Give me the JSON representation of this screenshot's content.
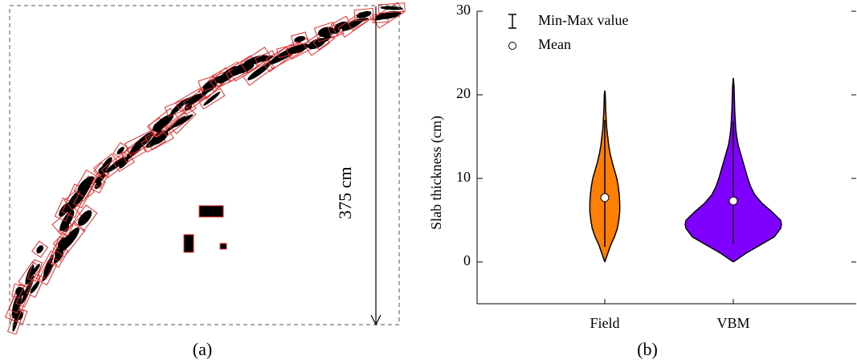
{
  "panel_a": {
    "caption": "(a)",
    "dimension_label": "375 cm"
  },
  "chart_data": {
    "type": "violin",
    "caption": "(b)",
    "y_label": "Slab thickness (cm)",
    "categories": [
      "Field",
      "VBM"
    ],
    "ylim": [
      -5,
      30
    ],
    "yticks": [
      0,
      10,
      20,
      30
    ],
    "legend": {
      "range_label": "Min-Max value",
      "mean_label": "Mean"
    },
    "series": [
      {
        "name": "Field",
        "color": "#ff8000",
        "min": 1.8,
        "max": 17,
        "mean": 7.7,
        "kde": {
          "y": [
            0,
            1,
            2,
            3,
            4,
            5,
            6,
            7,
            8,
            9,
            10,
            11,
            12,
            13,
            14,
            15,
            16,
            17,
            18,
            19,
            20,
            20.5
          ],
          "width": [
            0,
            0.06,
            0.12,
            0.2,
            0.26,
            0.29,
            0.31,
            0.31,
            0.3,
            0.28,
            0.25,
            0.2,
            0.15,
            0.11,
            0.08,
            0.06,
            0.04,
            0.03,
            0.02,
            0.015,
            0.01,
            0
          ]
        }
      },
      {
        "name": "VBM",
        "color": "#8000ff",
        "min": 2.2,
        "max": 16.8,
        "mean": 7.3,
        "kde": {
          "y": [
            0,
            1,
            2,
            3,
            4,
            4.5,
            5,
            6,
            7,
            8,
            9,
            10,
            11,
            12,
            13,
            14,
            15,
            16,
            17,
            18,
            19,
            20,
            21,
            22
          ],
          "width": [
            0,
            0.25,
            0.55,
            0.85,
            0.98,
            1,
            0.98,
            0.8,
            0.6,
            0.45,
            0.36,
            0.3,
            0.25,
            0.2,
            0.15,
            0.1,
            0.07,
            0.05,
            0.04,
            0.03,
            0.025,
            0.02,
            0.015,
            0
          ]
        }
      }
    ]
  }
}
